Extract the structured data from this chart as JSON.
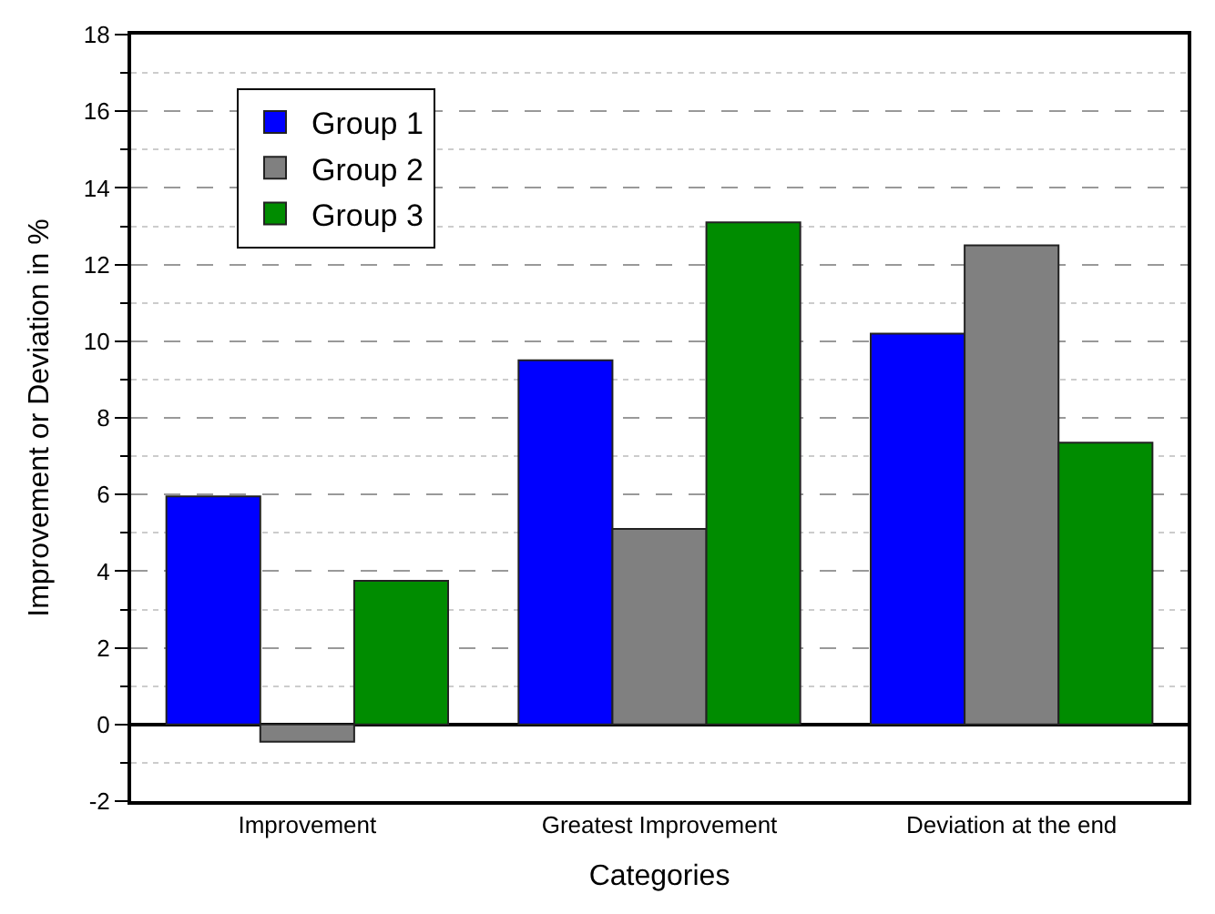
{
  "chart_data": {
    "type": "bar",
    "xlabel": "Categories",
    "ylabel": "Improvement or Deviation in %",
    "categories": [
      "Improvement",
      "Greatest Improvement",
      "Deviation at the end"
    ],
    "series": [
      {
        "name": "Group 1",
        "color": "#0000ff",
        "values": [
          5.95,
          9.5,
          10.2
        ]
      },
      {
        "name": "Group 2",
        "color": "#808080",
        "values": [
          -0.45,
          5.1,
          12.5
        ]
      },
      {
        "name": "Group 3",
        "color": "#008c00",
        "values": [
          3.75,
          13.1,
          7.35
        ]
      }
    ],
    "ylim": [
      -2,
      18
    ],
    "yticks": [
      -2,
      0,
      2,
      4,
      6,
      8,
      10,
      12,
      14,
      16,
      18
    ],
    "grid": "y",
    "legend": "top left"
  }
}
